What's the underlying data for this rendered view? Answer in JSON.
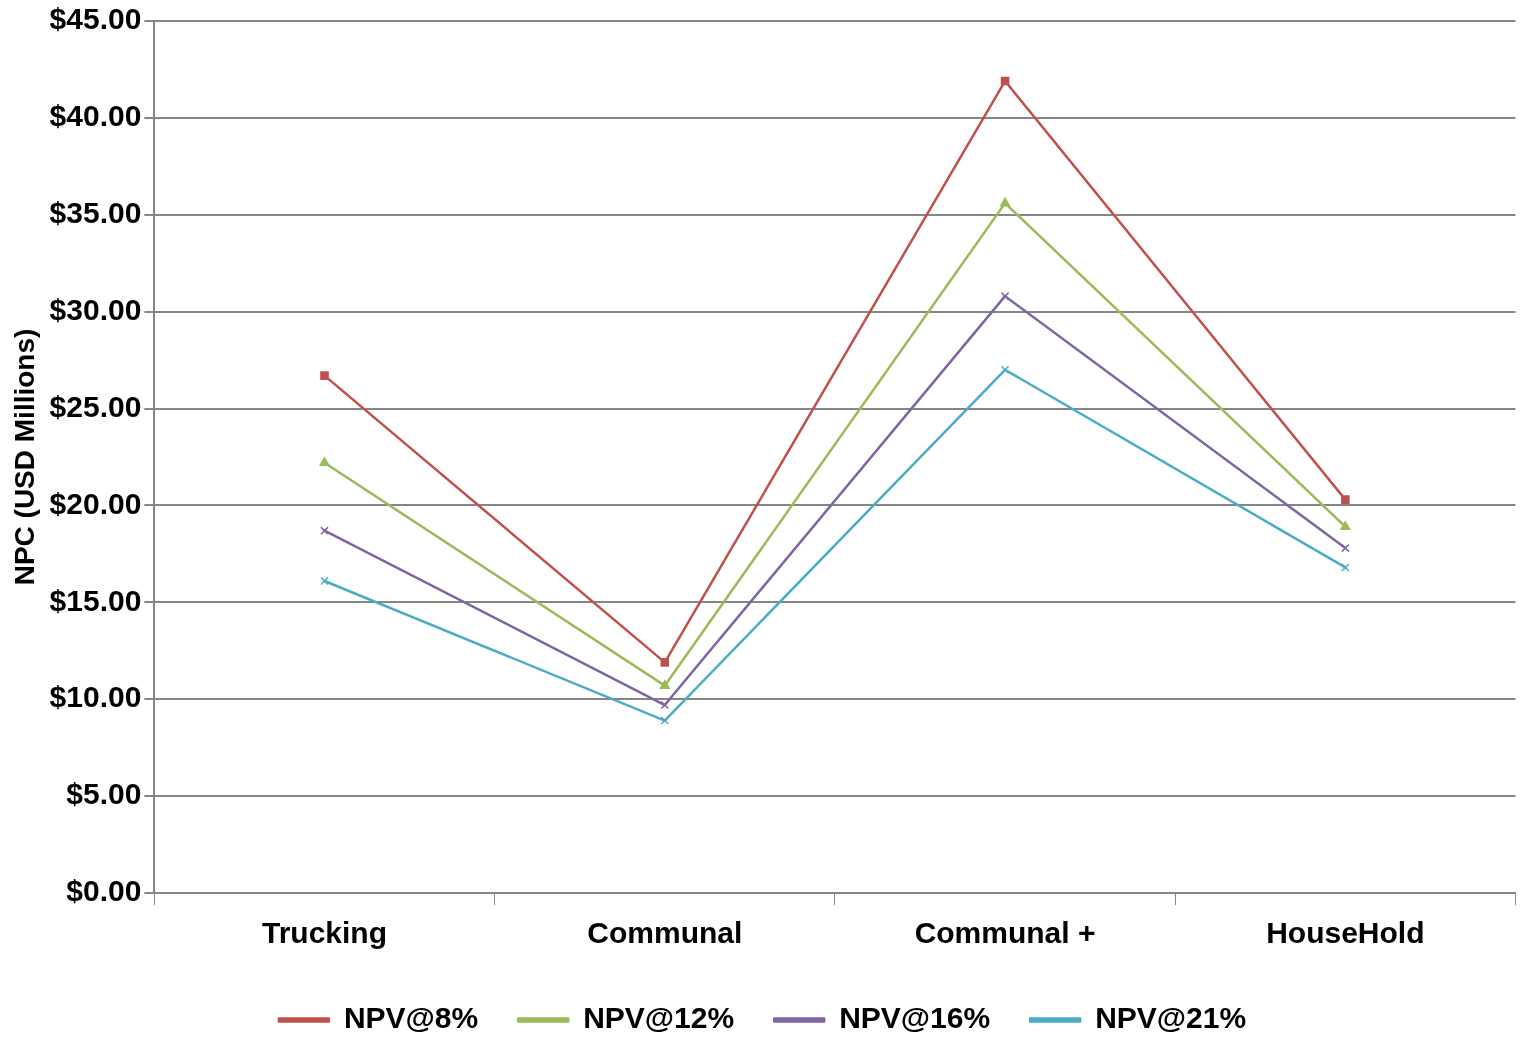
{
  "chart_data": {
    "type": "line",
    "ylabel": "NPC (USD Millions)",
    "categories": [
      "Trucking",
      "Communal",
      "Communal +",
      "HouseHold"
    ],
    "series": [
      {
        "name": "NPV@8%",
        "color": "#c0504d",
        "marker": "square",
        "values": [
          26.7,
          11.9,
          41.9,
          20.3
        ]
      },
      {
        "name": "NPV@12%",
        "color": "#9bbb59",
        "marker": "triangle",
        "values": [
          22.2,
          10.7,
          35.6,
          18.9
        ]
      },
      {
        "name": "NPV@16%",
        "color": "#8064a2",
        "marker": "cross",
        "values": [
          18.7,
          9.7,
          30.8,
          17.8
        ]
      },
      {
        "name": "NPV@21%",
        "color": "#4bacc6",
        "marker": "cross",
        "values": [
          16.1,
          8.9,
          27.0,
          16.8
        ]
      }
    ],
    "ylim": [
      0,
      45
    ],
    "yticks": [
      {
        "value": 0,
        "label": "$0.00"
      },
      {
        "value": 5,
        "label": "$5.00"
      },
      {
        "value": 10,
        "label": "$10.00"
      },
      {
        "value": 15,
        "label": "$15.00"
      },
      {
        "value": 20,
        "label": "$20.00"
      },
      {
        "value": 25,
        "label": "$25.00"
      },
      {
        "value": 30,
        "label": "$30.00"
      },
      {
        "value": 35,
        "label": "$35.00"
      },
      {
        "value": 40,
        "label": "$40.00"
      },
      {
        "value": 45,
        "label": "$45.00"
      }
    ],
    "grid": "y",
    "legend": "bottom",
    "line_style": "solid"
  }
}
